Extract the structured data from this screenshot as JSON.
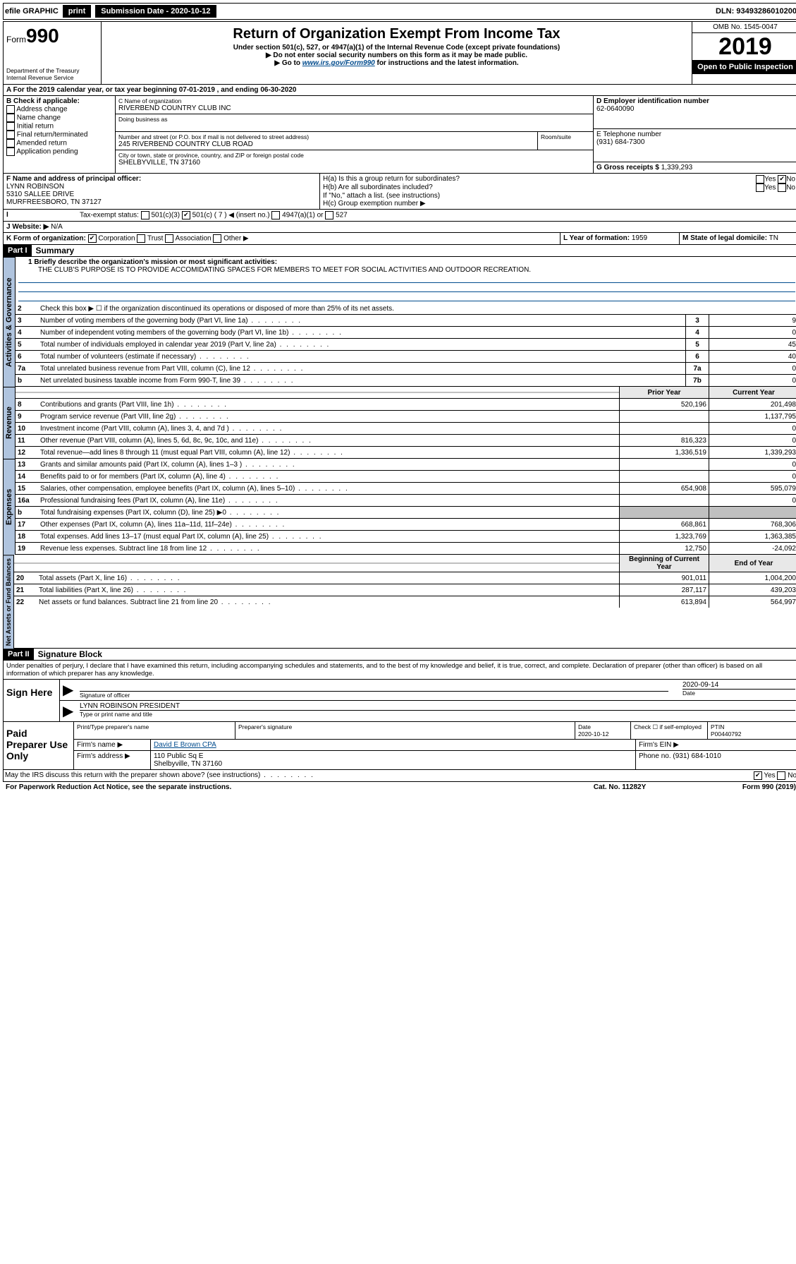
{
  "topbar": {
    "efile": "efile GRAPHIC",
    "print": "print",
    "sub_label": "Submission Date - 2020-10-12",
    "dln": "DLN: 93493286010200"
  },
  "header": {
    "form_prefix": "Form",
    "form_num": "990",
    "dept": "Department of the Treasury\nInternal Revenue Service",
    "title": "Return of Organization Exempt From Income Tax",
    "sub1": "Under section 501(c), 527, or 4947(a)(1) of the Internal Revenue Code (except private foundations)",
    "sub2": "▶ Do not enter social security numbers on this form as it may be made public.",
    "sub3_pre": "▶ Go to ",
    "sub3_link": "www.irs.gov/Form990",
    "sub3_post": " for instructions and the latest information.",
    "omb": "OMB No. 1545-0047",
    "year": "2019",
    "open": "Open to Public Inspection"
  },
  "period": {
    "text_a": "A For the 2019 calendar year, or tax year beginning 07-01-2019     , and ending 06-30-2020"
  },
  "boxB": {
    "label": "B Check if applicable:",
    "opts": [
      "Address change",
      "Name change",
      "Initial return",
      "Final return/terminated",
      "Amended return",
      "Application pending"
    ]
  },
  "boxC": {
    "name_lbl": "C Name of organization",
    "name": "RIVERBEND COUNTRY CLUB INC",
    "dba_lbl": "Doing business as",
    "addr_lbl": "Number and street (or P.O. box if mail is not delivered to street address)",
    "room_lbl": "Room/suite",
    "addr": "245 RIVERBEND COUNTRY CLUB ROAD",
    "city_lbl": "City or town, state or province, country, and ZIP or foreign postal code",
    "city": "SHELBYVILLE, TN  37160"
  },
  "boxD": {
    "lbl": "D Employer identification number",
    "val": "62-0640090"
  },
  "boxE": {
    "lbl": "E Telephone number",
    "val": "(931) 684-7300"
  },
  "boxG": {
    "lbl": "G Gross receipts $",
    "val": "1,339,293"
  },
  "boxF": {
    "lbl": "F Name and address of principal officer:",
    "name": "LYNN ROBINSON",
    "addr": "5310 SALLEE DRIVE",
    "city": "MURFREESBORO, TN  37127"
  },
  "boxH": {
    "ha": "H(a)  Is this a group return for subordinates?",
    "hb": "H(b)  Are all subordinates included?",
    "hb2": "If \"No,\" attach a list. (see instructions)",
    "hc": "H(c)  Group exemption number ▶"
  },
  "boxI": {
    "lbl": "Tax-exempt status:",
    "c1": "501(c)(3)",
    "c2": "501(c) ( 7 ) ◀ (insert no.)",
    "c3": "4947(a)(1) or",
    "c4": "527"
  },
  "boxJ": {
    "lbl": "Website: ▶",
    "val": "N/A"
  },
  "boxK": {
    "lbl": "K Form of organization:",
    "corp": "Corporation",
    "trust": "Trust",
    "assoc": "Association",
    "other": "Other ▶"
  },
  "boxL": {
    "lbl": "L Year of formation:",
    "val": "1959"
  },
  "boxM": {
    "lbl": "M State of legal domicile:",
    "val": "TN"
  },
  "part1": {
    "hdr": "Part I",
    "title": "Summary"
  },
  "summary": {
    "l1_lbl": "1 Briefly describe the organization's mission or most significant activities:",
    "l1_val": "THE CLUB'S PURPOSE IS TO PROVIDE ACCOMIDATING SPACES FOR MEMBERS TO MEET FOR SOCIAL ACTIVITIES AND OUTDOOR RECREATION.",
    "l2": "Check this box ▶ ☐ if the organization discontinued its operations or disposed of more than 25% of its net assets.",
    "gov_side": "Activities & Governance",
    "rev_side": "Revenue",
    "exp_side": "Expenses",
    "net_side": "Net Assets or Fund Balances",
    "rows": [
      {
        "n": "3",
        "d": "Number of voting members of the governing body (Part VI, line 1a)",
        "box": "3",
        "v": "9"
      },
      {
        "n": "4",
        "d": "Number of independent voting members of the governing body (Part VI, line 1b)",
        "box": "4",
        "v": "0"
      },
      {
        "n": "5",
        "d": "Total number of individuals employed in calendar year 2019 (Part V, line 2a)",
        "box": "5",
        "v": "45"
      },
      {
        "n": "6",
        "d": "Total number of volunteers (estimate if necessary)",
        "box": "6",
        "v": "40"
      },
      {
        "n": "7a",
        "d": "Total unrelated business revenue from Part VIII, column (C), line 12",
        "box": "7a",
        "v": "0"
      },
      {
        "n": "b",
        "d": "Net unrelated business taxable income from Form 990-T, line 39",
        "box": "7b",
        "v": "0"
      }
    ],
    "th_prior": "Prior Year",
    "th_curr": "Current Year",
    "revrows": [
      {
        "n": "8",
        "d": "Contributions and grants (Part VIII, line 1h)",
        "p": "520,196",
        "c": "201,498"
      },
      {
        "n": "9",
        "d": "Program service revenue (Part VIII, line 2g)",
        "p": "",
        "c": "1,137,795"
      },
      {
        "n": "10",
        "d": "Investment income (Part VIII, column (A), lines 3, 4, and 7d )",
        "p": "",
        "c": "0"
      },
      {
        "n": "11",
        "d": "Other revenue (Part VIII, column (A), lines 5, 6d, 8c, 9c, 10c, and 11e)",
        "p": "816,323",
        "c": "0"
      },
      {
        "n": "12",
        "d": "Total revenue—add lines 8 through 11 (must equal Part VIII, column (A), line 12)",
        "p": "1,336,519",
        "c": "1,339,293"
      }
    ],
    "exprows": [
      {
        "n": "13",
        "d": "Grants and similar amounts paid (Part IX, column (A), lines 1–3 )",
        "p": "",
        "c": "0"
      },
      {
        "n": "14",
        "d": "Benefits paid to or for members (Part IX, column (A), line 4)",
        "p": "",
        "c": "0"
      },
      {
        "n": "15",
        "d": "Salaries, other compensation, employee benefits (Part IX, column (A), lines 5–10)",
        "p": "654,908",
        "c": "595,079"
      },
      {
        "n": "16a",
        "d": "Professional fundraising fees (Part IX, column (A), line 11e)",
        "p": "",
        "c": "0"
      },
      {
        "n": "b",
        "d": "Total fundraising expenses (Part IX, column (D), line 25) ▶0",
        "p": "shaded",
        "c": "shaded"
      },
      {
        "n": "17",
        "d": "Other expenses (Part IX, column (A), lines 11a–11d, 11f–24e)",
        "p": "668,861",
        "c": "768,306"
      },
      {
        "n": "18",
        "d": "Total expenses. Add lines 13–17 (must equal Part IX, column (A), line 25)",
        "p": "1,323,769",
        "c": "1,363,385"
      },
      {
        "n": "19",
        "d": "Revenue less expenses. Subtract line 18 from line 12",
        "p": "12,750",
        "c": "-24,092"
      }
    ],
    "th_begin": "Beginning of Current Year",
    "th_end": "End of Year",
    "netrows": [
      {
        "n": "20",
        "d": "Total assets (Part X, line 16)",
        "p": "901,011",
        "c": "1,004,200"
      },
      {
        "n": "21",
        "d": "Total liabilities (Part X, line 26)",
        "p": "287,117",
        "c": "439,203"
      },
      {
        "n": "22",
        "d": "Net assets or fund balances. Subtract line 21 from line 20",
        "p": "613,894",
        "c": "564,997"
      }
    ]
  },
  "part2": {
    "hdr": "Part II",
    "title": "Signature Block",
    "decl": "Under penalties of perjury, I declare that I have examined this return, including accompanying schedules and statements, and to the best of my knowledge and belief, it is true, correct, and complete. Declaration of preparer (other than officer) is based on all information of which preparer has any knowledge."
  },
  "sign": {
    "lbl": "Sign Here",
    "sig_lbl": "Signature of officer",
    "date": "2020-09-14",
    "date_lbl": "Date",
    "name": "LYNN ROBINSON PRESIDENT",
    "name_lbl": "Type or print name and title"
  },
  "paid": {
    "lbl": "Paid Preparer Use Only",
    "h1": "Print/Type preparer's name",
    "h2": "Preparer's signature",
    "h3": "Date",
    "h3v": "2020-10-12",
    "h4": "Check ☐ if self-employed",
    "h5": "PTIN",
    "h5v": "P00440792",
    "firm_lbl": "Firm's name    ▶",
    "firm": "David E Brown CPA",
    "ein_lbl": "Firm's EIN ▶",
    "addr_lbl": "Firm's address ▶",
    "addr": "110 Public Sq E",
    "addr2": "Shelbyville, TN  37160",
    "phone_lbl": "Phone no.",
    "phone": "(931) 684-1010"
  },
  "footer": {
    "discuss": "May the IRS discuss this return with the preparer shown above? (see instructions)",
    "paperwork": "For Paperwork Reduction Act Notice, see the separate instructions.",
    "cat": "Cat. No. 11282Y",
    "form": "Form 990 (2019)"
  }
}
